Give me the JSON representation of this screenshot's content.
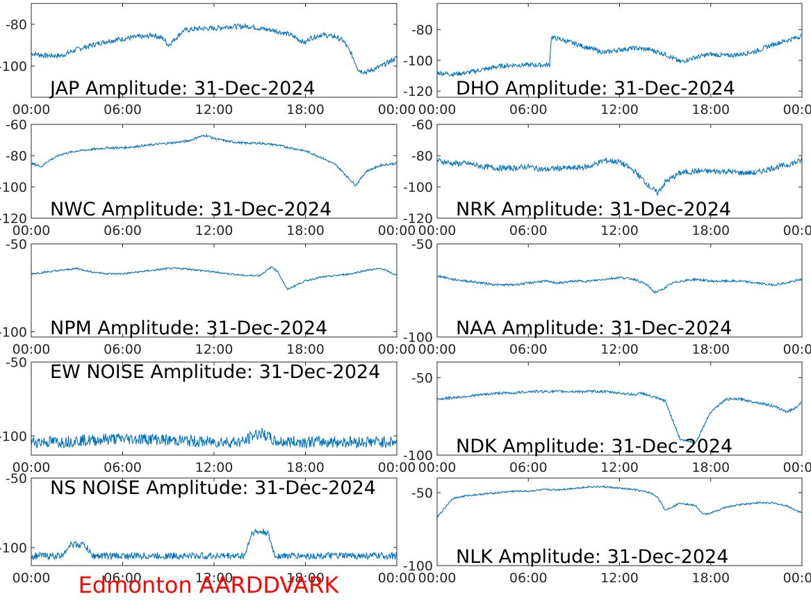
{
  "footer": {
    "text": "Edmonton AARDDVARK",
    "color": "#ff0000"
  },
  "style": {
    "line_color": "#0072bd",
    "axis_color": "#262626"
  },
  "chart_data": [
    {
      "type": "line",
      "title": "JAP Amplitude: 31-Dec-2024",
      "ylim": [
        -115,
        -70
      ],
      "yticks": [
        -80,
        -100
      ],
      "xticks": [
        "00:00",
        "06:00",
        "12:00",
        "18:00",
        "00:00"
      ],
      "series": [
        {
          "x": [
            0,
            1,
            2,
            3,
            4,
            5,
            6,
            7,
            7.5,
            8,
            8.7,
            9,
            9.3,
            10,
            11,
            12,
            13,
            14,
            14.5,
            15,
            16,
            17,
            17.5,
            18,
            18.2,
            19,
            20,
            20.5,
            21,
            21.5,
            22,
            23,
            24
          ],
          "y": [
            -94,
            -95,
            -95,
            -92,
            -90,
            -88,
            -87,
            -86,
            -86,
            -85,
            -87,
            -90,
            -88,
            -83,
            -82,
            -82,
            -81,
            -81,
            -81,
            -82,
            -83,
            -85,
            -87,
            -89,
            -87,
            -85,
            -86,
            -88,
            -94,
            -102,
            -103,
            -100,
            -96
          ],
          "noise": 1.2
        }
      ]
    },
    {
      "type": "line",
      "title": "DHO Amplitude: 31-Dec-2024",
      "ylim": [
        -124,
        -63
      ],
      "yticks": [
        -80,
        -100,
        -120
      ],
      "xticks": [
        "00:00",
        "06:00",
        "12:00",
        "18:00",
        "00:00"
      ],
      "series": [
        {
          "x": [
            0,
            1,
            2,
            3,
            4,
            5,
            6,
            7,
            7.4,
            7.5,
            8,
            9,
            10,
            11,
            12,
            13,
            14,
            15,
            16,
            17,
            18,
            19,
            20,
            21,
            22,
            23,
            24
          ],
          "y": [
            -108,
            -109,
            -108,
            -106,
            -104,
            -103,
            -103,
            -103,
            -103,
            -85,
            -86,
            -89,
            -92,
            -95,
            -93,
            -92,
            -93,
            -96,
            -101,
            -98,
            -96,
            -97,
            -96,
            -94,
            -90,
            -87,
            -84
          ],
          "noise": 1.5
        }
      ]
    },
    {
      "type": "line",
      "title": "NWC Amplitude: 31-Dec-2024",
      "ylim": [
        -120,
        -60
      ],
      "yticks": [
        -60,
        -80,
        -100,
        -120
      ],
      "xticks": [
        "00:00",
        "06:00",
        "12:00",
        "18:00",
        "00:00"
      ],
      "series": [
        {
          "x": [
            0,
            0.7,
            1,
            2,
            3,
            4,
            5,
            6,
            7,
            8,
            9,
            10,
            10.5,
            11,
            11.5,
            12,
            13,
            14,
            15,
            16,
            17,
            18,
            19,
            20,
            20.7,
            21.3,
            22,
            23,
            24
          ],
          "y": [
            -85,
            -87,
            -84,
            -79,
            -77,
            -76,
            -75,
            -75,
            -74,
            -73,
            -72,
            -71,
            -70,
            -68,
            -67,
            -69,
            -71,
            -72,
            -72,
            -73,
            -75,
            -77,
            -81,
            -86,
            -93,
            -99,
            -90,
            -86,
            -85
          ],
          "noise": 0.7
        }
      ]
    },
    {
      "type": "line",
      "title": "NRK Amplitude: 31-Dec-2024",
      "ylim": [
        -120,
        -60
      ],
      "yticks": [
        -60,
        -80,
        -100,
        -120
      ],
      "xticks": [
        "00:00",
        "06:00",
        "12:00",
        "18:00",
        "00:00"
      ],
      "series": [
        {
          "x": [
            0,
            1,
            2,
            3,
            4,
            5,
            6,
            7,
            8,
            9,
            10,
            11,
            12,
            13,
            14,
            14.5,
            15,
            16,
            17,
            18,
            19,
            20,
            21,
            22,
            23,
            24
          ],
          "y": [
            -83,
            -85,
            -85,
            -87,
            -88,
            -88,
            -87,
            -89,
            -88,
            -88,
            -87,
            -83,
            -84,
            -90,
            -100,
            -104,
            -97,
            -91,
            -90,
            -90,
            -90,
            -91,
            -91,
            -88,
            -86,
            -83
          ],
          "noise": 1.8
        }
      ]
    },
    {
      "type": "line",
      "title": "NPM Amplitude: 31-Dec-2024",
      "ylim": [
        -103,
        -50
      ],
      "yticks": [
        -50,
        -100
      ],
      "xticks": [
        "00:00",
        "06:00",
        "12:00",
        "18:00",
        "00:00"
      ],
      "series": [
        {
          "x": [
            0,
            1,
            2,
            3,
            4,
            5,
            6,
            7,
            8,
            9,
            10,
            11,
            12,
            13,
            14,
            15,
            15.8,
            16.2,
            16.8,
            17.5,
            18,
            19,
            20,
            21,
            22,
            23,
            24
          ],
          "y": [
            -67,
            -66,
            -65,
            -64,
            -66,
            -67,
            -67,
            -66,
            -65,
            -64,
            -64,
            -65,
            -66,
            -67,
            -68,
            -68,
            -63,
            -66,
            -76,
            -73,
            -71,
            -69,
            -68,
            -67,
            -65,
            -64,
            -68
          ],
          "noise": 0.5
        }
      ]
    },
    {
      "type": "line",
      "title": "NAA Amplitude: 31-Dec-2024",
      "ylim": [
        -100,
        -50
      ],
      "yticks": [
        -50,
        -100
      ],
      "xticks": [
        "00:00",
        "06:00",
        "12:00",
        "18:00",
        "00:00"
      ],
      "series": [
        {
          "x": [
            0,
            1,
            2,
            3,
            4,
            5,
            6,
            7,
            8,
            9,
            10,
            11,
            12,
            13,
            13.8,
            14.3,
            14.7,
            15.5,
            16,
            17,
            18,
            19,
            20,
            21,
            22,
            23,
            24
          ],
          "y": [
            -67,
            -69,
            -70,
            -71,
            -72,
            -72,
            -71,
            -70,
            -71,
            -70,
            -70,
            -69,
            -68,
            -69,
            -72,
            -76,
            -75,
            -71,
            -70,
            -69,
            -70,
            -70,
            -70,
            -71,
            -72,
            -71,
            -69
          ],
          "noise": 0.6
        }
      ]
    },
    {
      "type": "line",
      "title": "EW NOISE Amplitude: 31-Dec-2024",
      "ylim": [
        -113,
        -50
      ],
      "yticks": [
        -50,
        -100
      ],
      "xticks": [
        "00:00",
        "06:00",
        "12:00",
        "18:00",
        "00:00"
      ],
      "series": [
        {
          "x": [
            0,
            1,
            2,
            3,
            4,
            5,
            6,
            7,
            8,
            9,
            10,
            11,
            12,
            13,
            14,
            14.5,
            15,
            15.5,
            16,
            17,
            18,
            19,
            20,
            21,
            22,
            23,
            24
          ],
          "y": [
            -104,
            -104,
            -104,
            -103,
            -103,
            -102,
            -102,
            -102,
            -102,
            -103,
            -103,
            -104,
            -104,
            -104,
            -104,
            -100,
            -98,
            -100,
            -104,
            -104,
            -104,
            -104,
            -104,
            -104,
            -104,
            -104,
            -104
          ],
          "noise": 4
        }
      ]
    },
    {
      "type": "line",
      "title": "NDK Amplitude: 31-Dec-2024",
      "ylim": [
        -100,
        -40
      ],
      "yticks": [
        -50,
        -100
      ],
      "xticks": [
        "00:00",
        "06:00",
        "12:00",
        "18:00",
        "00:00"
      ],
      "series": [
        {
          "x": [
            0,
            1,
            2,
            3,
            4,
            5,
            6,
            7,
            8,
            9,
            10,
            11,
            12,
            13,
            13.5,
            14,
            15,
            16,
            17,
            18,
            19,
            20,
            21,
            22,
            23,
            23.5,
            24
          ],
          "y": [
            -64,
            -63,
            -62,
            -61,
            -60,
            -60,
            -59,
            -59,
            -59,
            -59,
            -59,
            -59,
            -60,
            -61,
            -60,
            -62,
            -65,
            -90,
            -92,
            -72,
            -64,
            -64,
            -66,
            -68,
            -72,
            -70,
            -66
          ],
          "noise": 0.8
        }
      ]
    },
    {
      "type": "line",
      "title": "NS NOISE Amplitude: 31-Dec-2024",
      "ylim": [
        -113,
        -50
      ],
      "yticks": [
        -50,
        -100
      ],
      "xticks": [
        "00:00",
        "06:00",
        "12:00",
        "18:00",
        "00:00"
      ],
      "series": [
        {
          "x": [
            0,
            1,
            2,
            2.5,
            3,
            3.5,
            4,
            5,
            6,
            7,
            8,
            9,
            10,
            11,
            12,
            13,
            14,
            14.5,
            15,
            15.5,
            16,
            17,
            18,
            19,
            20,
            21,
            22,
            23,
            24
          ],
          "y": [
            -106,
            -106,
            -106,
            -98,
            -98,
            -98,
            -106,
            -106,
            -106,
            -106,
            -106,
            -106,
            -106,
            -106,
            -106,
            -106,
            -106,
            -89,
            -89,
            -89,
            -106,
            -106,
            -106,
            -106,
            -106,
            -106,
            -106,
            -106,
            -106
          ],
          "noise": 2.5
        }
      ]
    },
    {
      "type": "line",
      "title": "NLK Amplitude: 31-Dec-2024",
      "ylim": [
        -100,
        -40
      ],
      "yticks": [
        -50,
        -100
      ],
      "xticks": [
        "00:00",
        "06:00",
        "12:00",
        "18:00",
        "00:00"
      ],
      "series": [
        {
          "x": [
            0,
            1,
            2,
            3,
            4,
            5,
            6,
            7,
            8,
            9,
            10,
            11,
            12,
            13,
            14,
            14.5,
            15,
            16,
            17,
            17.5,
            18,
            19,
            20,
            21,
            22,
            23,
            24
          ],
          "y": [
            -67,
            -54,
            -52,
            -51,
            -50,
            -49,
            -49,
            -48,
            -48,
            -47,
            -46,
            -46,
            -47,
            -48,
            -50,
            -53,
            -62,
            -57,
            -59,
            -65,
            -64,
            -60,
            -58,
            -57,
            -57,
            -59,
            -64
          ],
          "noise": 0.6
        }
      ]
    }
  ]
}
